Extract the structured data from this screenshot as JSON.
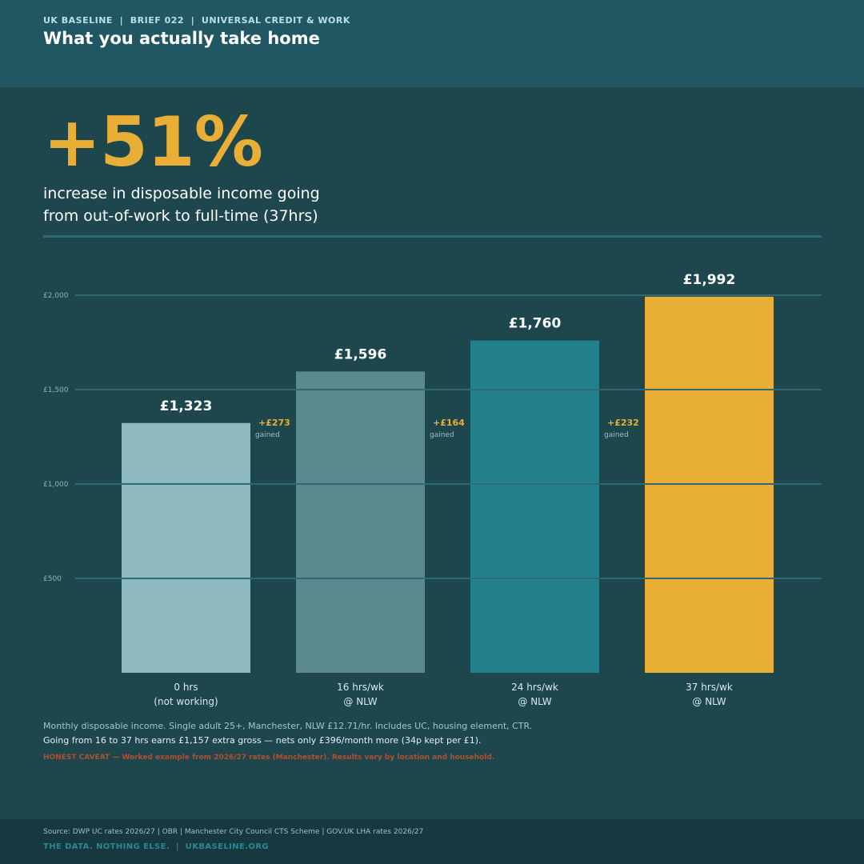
{
  "header": {
    "eyebrow": "UK BASELINE  |  BRIEF 022  |  UNIVERSAL CREDIT & WORK",
    "title": "What you actually take home"
  },
  "headline": {
    "stat": "+51%",
    "desc_line1": "increase in disposable income going",
    "desc_line2": "from out-of-work to full-time (37hrs)"
  },
  "chart_data": {
    "type": "bar",
    "categories": [
      [
        "0 hrs",
        "(not working)"
      ],
      [
        "16 hrs/wk",
        "@ NLW"
      ],
      [
        "24 hrs/wk",
        "@ NLW"
      ],
      [
        "37 hrs/wk",
        "@ NLW"
      ]
    ],
    "values": [
      1323,
      1596,
      1760,
      1992
    ],
    "value_labels": [
      "£1,323",
      "£1,596",
      "£1,760",
      "£1,992"
    ],
    "bar_colors": [
      "#8db8bd",
      "#5b8a8e",
      "#21808c",
      "#e8ae35"
    ],
    "gains": [
      {
        "value": "+£273",
        "label": "gained"
      },
      {
        "value": "+£164",
        "label": "gained"
      },
      {
        "value": "+£232",
        "label": "gained"
      }
    ],
    "yticks": [
      500,
      1000,
      1500,
      2000
    ],
    "ytick_labels": [
      "£500",
      "£1,000",
      "£1,500",
      "£2,000"
    ],
    "ylim": [
      0,
      2000
    ],
    "grid": true,
    "title": "",
    "xlabel": "",
    "ylabel": ""
  },
  "notes": {
    "line1": "Monthly disposable income. Single adult 25+, Manchester, NLW £12.71/hr. Includes UC, housing element, CTR.",
    "line2": "Going from 16 to 37 hrs earns £1,157 extra gross — nets only £396/month more (34p kept per £1).",
    "caveat": "HONEST CAVEAT — Worked example from 2026/27 rates (Manchester). Results vary by location and household."
  },
  "footer": {
    "source": "Source: DWP UC rates 2026/27 | OBR | Manchester City Council CTS Scheme | GOV.UK LHA rates 2026/27",
    "brand": "THE DATA. NOTHING ELSE.  |  UKBASELINE.ORG"
  },
  "colors": {
    "background": "#1e474d",
    "header": "#215763",
    "accent": "#e8ae35",
    "caveat": "#b24f2e"
  }
}
